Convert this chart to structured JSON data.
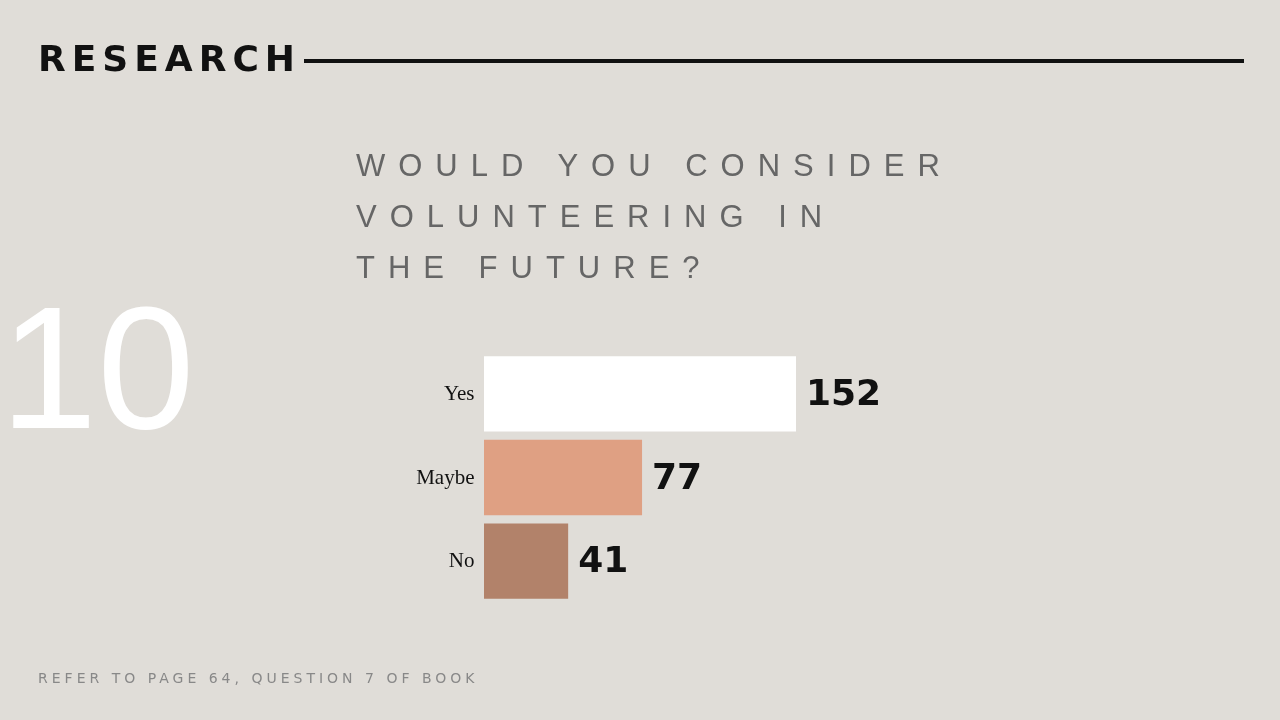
{
  "chart_data": {
    "type": "bar",
    "orientation": "horizontal",
    "title": "RESEARCH",
    "subtitle": "WOULD YOU CONSIDER VOLUNTEERING IN THE FUTURE?",
    "categories": [
      "Yes",
      "Maybe",
      "No"
    ],
    "values": [
      152,
      77,
      41
    ],
    "colors": [
      "#ffffff",
      "#dfa083",
      "#b2826a"
    ],
    "data_labels": true,
    "annotations": [
      "10",
      "REFER TO PAGE 64, QUESTION 7 OF BOOK"
    ]
  }
}
